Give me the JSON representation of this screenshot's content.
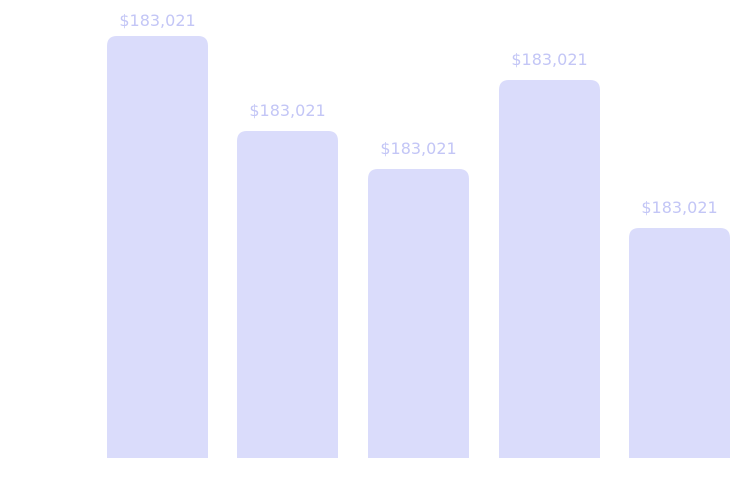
{
  "bars": [
    {
      "label": "$183,021"
    },
    {
      "label": "$183,021"
    },
    {
      "label": "$183,021"
    },
    {
      "label": "$183,021"
    },
    {
      "label": "$183,021"
    }
  ]
}
